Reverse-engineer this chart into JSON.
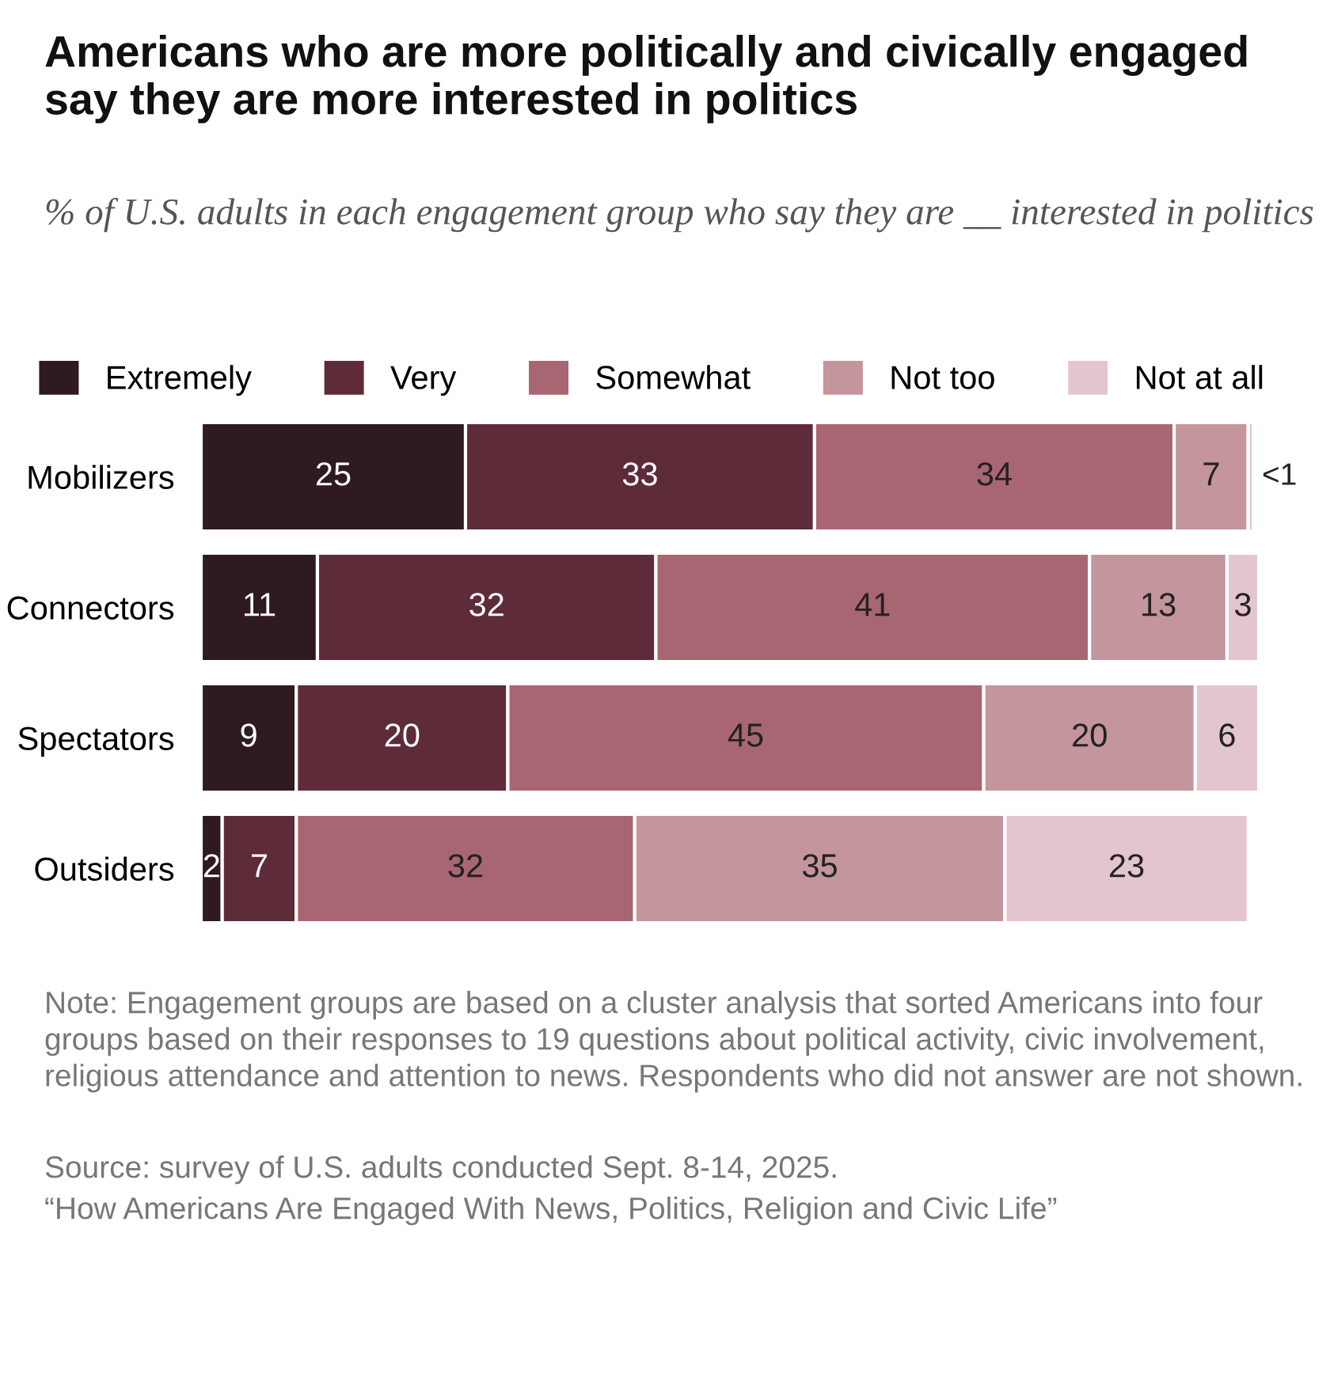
{
  "chart_data": {
    "type": "bar",
    "orientation": "horizontal",
    "stacked": true,
    "title": "Americans who are more politically and civically engaged say they are more interested in politics",
    "subtitle": "% of U.S. adults in each engagement group who say they are __ interested in politics",
    "categories": [
      "Mobilizers",
      "Connectors",
      "Spectators",
      "Outsiders"
    ],
    "series": [
      {
        "name": "Extremely",
        "color": "#2e1a1f",
        "values": [
          25,
          11,
          9,
          2
        ],
        "value_labels": [
          "25",
          "11",
          "9",
          "2"
        ]
      },
      {
        "name": "Very",
        "color": "#5e2b38",
        "values": [
          33,
          32,
          20,
          7
        ],
        "value_labels": [
          "33",
          "32",
          "20",
          "7"
        ]
      },
      {
        "name": "Somewhat",
        "color": "#a86673",
        "values": [
          34,
          41,
          45,
          32
        ],
        "value_labels": [
          "34",
          "41",
          "45",
          "32"
        ]
      },
      {
        "name": "Not too",
        "color": "#c4959c",
        "values": [
          7,
          13,
          20,
          35
        ],
        "value_labels": [
          "7",
          "13",
          "20",
          "35"
        ]
      },
      {
        "name": "Not at all",
        "color": "#e3c6cd",
        "values": [
          0.5,
          3,
          6,
          23
        ],
        "value_labels": [
          "<1",
          "3",
          "6",
          "23"
        ]
      }
    ],
    "legend": "top",
    "grid": false,
    "annotations": [
      "Note: Engagement groups are based on a cluster analysis that sorted Americans into four groups based on their responses to 19 questions about political activity, civic involvement, religious attendance and attention to news. Respondents who did not answer are not shown.",
      "Source: survey of U.S. adults conducted Sept. 8-14, 2025.",
      "“How Americans Are Engaged With News, Politics, Religion and Civic Life”"
    ]
  }
}
